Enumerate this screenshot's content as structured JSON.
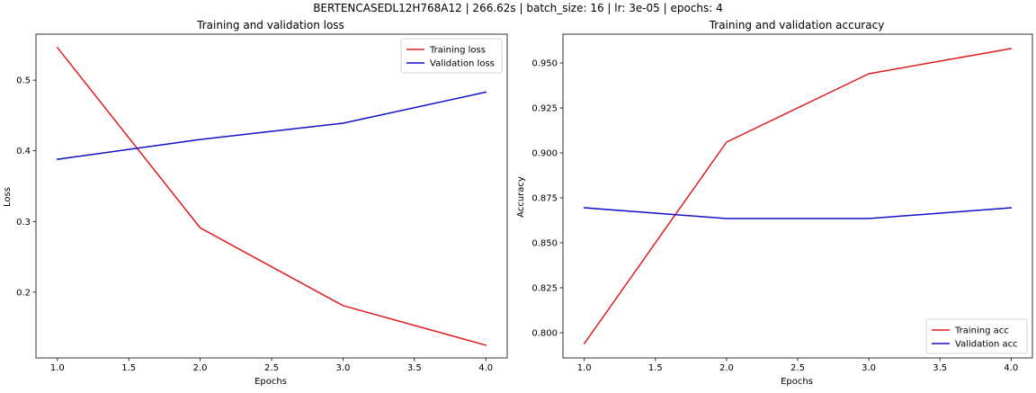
{
  "figure": {
    "suptitle": "BERTENCASEDL12H768A12 | 266.62s | batch_size: 16 | lr: 3e-05 | epochs: 4"
  },
  "colors": {
    "training": "#e31a1c",
    "validation": "#1010c8"
  },
  "chart_data": [
    {
      "type": "line",
      "title": "Training and validation loss",
      "xlabel": "Epochs",
      "ylabel": "Loss",
      "x": [
        1,
        2,
        3,
        4
      ],
      "xlim": [
        0.85,
        4.15
      ],
      "ylim": [
        0.107,
        0.565
      ],
      "xticks": [
        1.0,
        1.5,
        2.0,
        2.5,
        3.0,
        3.5,
        4.0
      ],
      "xtick_labels": [
        "1.0",
        "1.5",
        "2.0",
        "2.5",
        "3.0",
        "3.5",
        "4.0"
      ],
      "yticks": [
        0.2,
        0.3,
        0.4,
        0.5
      ],
      "ytick_labels": [
        "0.2",
        "0.3",
        "0.4",
        "0.5"
      ],
      "legend_loc": "top-right",
      "series": [
        {
          "name": "Training loss",
          "color_key": "training",
          "values": [
            0.546,
            0.291,
            0.181,
            0.125
          ]
        },
        {
          "name": "Validation loss",
          "color_key": "validation",
          "values": [
            0.388,
            0.416,
            0.439,
            0.483
          ]
        }
      ]
    },
    {
      "type": "line",
      "title": "Training and validation accuracy",
      "xlabel": "Epochs",
      "ylabel": "Accuracy",
      "x": [
        1,
        2,
        3,
        4
      ],
      "xlim": [
        0.85,
        4.15
      ],
      "ylim": [
        0.786,
        0.966
      ],
      "xticks": [
        1.0,
        1.5,
        2.0,
        2.5,
        3.0,
        3.5,
        4.0
      ],
      "xtick_labels": [
        "1.0",
        "1.5",
        "2.0",
        "2.5",
        "3.0",
        "3.5",
        "4.0"
      ],
      "yticks": [
        0.8,
        0.825,
        0.85,
        0.875,
        0.9,
        0.925,
        0.95
      ],
      "ytick_labels": [
        "0.800",
        "0.825",
        "0.850",
        "0.875",
        "0.900",
        "0.925",
        "0.950"
      ],
      "legend_loc": "bottom-right",
      "series": [
        {
          "name": "Training acc",
          "color_key": "training",
          "values": [
            0.794,
            0.906,
            0.944,
            0.958
          ]
        },
        {
          "name": "Validation acc",
          "color_key": "validation",
          "values": [
            0.8695,
            0.8635,
            0.8635,
            0.8695
          ]
        }
      ]
    }
  ]
}
